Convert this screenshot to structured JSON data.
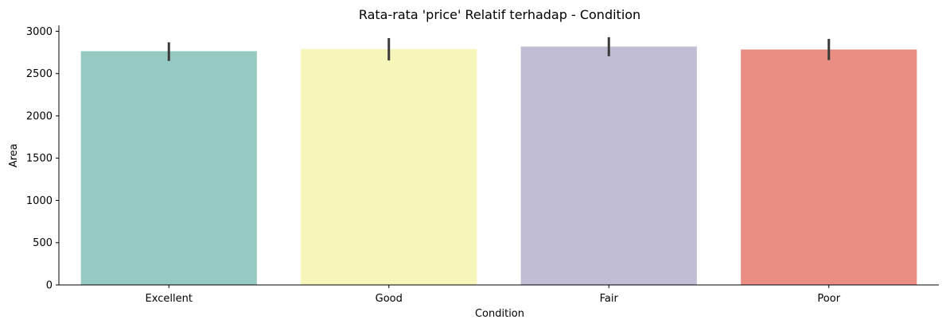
{
  "chart_data": {
    "type": "bar",
    "title": "Rata-rata 'price' Relatif terhadap - Condition",
    "xlabel": "Condition",
    "ylabel": "Area",
    "categories": [
      "Excellent",
      "Good",
      "Fair",
      "Poor"
    ],
    "values": [
      2765,
      2790,
      2820,
      2785
    ],
    "error_bars": [
      {
        "low": 2650,
        "high": 2870
      },
      {
        "low": 2655,
        "high": 2920
      },
      {
        "low": 2705,
        "high": 2930
      },
      {
        "low": 2660,
        "high": 2910
      }
    ],
    "colors": [
      "#96c9c1",
      "#f6f6bb",
      "#c1bdd5",
      "#ea8d82"
    ],
    "ylim": [
      0,
      3070
    ],
    "yticks": [
      0,
      500,
      1000,
      1500,
      2000,
      2500,
      3000
    ],
    "grid": false,
    "legend": "none"
  }
}
